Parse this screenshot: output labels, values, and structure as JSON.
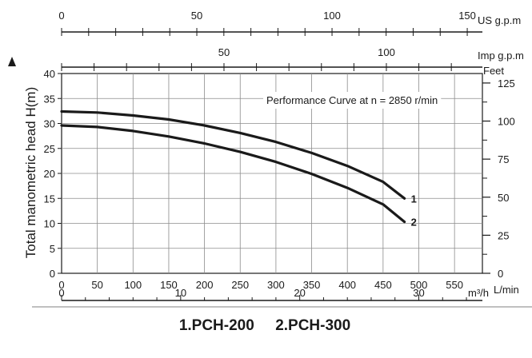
{
  "chart_data": {
    "type": "line",
    "title": "Performance Curve at n = 2850 r/min",
    "ylabel": "Total manometric head H(m)",
    "xlabel": "L/min",
    "xlim": [
      0,
      600
    ],
    "ylim": [
      0,
      40
    ],
    "x_ticks": [
      0,
      50,
      100,
      150,
      200,
      250,
      300,
      350,
      400,
      450,
      500,
      550
    ],
    "y_ticks": [
      0,
      5,
      10,
      15,
      20,
      25,
      30,
      35,
      40
    ],
    "grid": true,
    "series": [
      {
        "name": "1",
        "x": [
          0,
          50,
          100,
          150,
          200,
          250,
          300,
          350,
          400,
          450,
          480
        ],
        "y": [
          32.4,
          32.2,
          31.6,
          30.8,
          29.6,
          28.1,
          26.3,
          24.1,
          21.5,
          18.3,
          15.0
        ]
      },
      {
        "name": "2",
        "x": [
          0,
          50,
          100,
          150,
          200,
          250,
          300,
          350,
          400,
          450,
          480
        ],
        "y": [
          29.6,
          29.3,
          28.5,
          27.4,
          26.0,
          24.3,
          22.3,
          19.9,
          17.1,
          13.8,
          10.3
        ]
      }
    ],
    "secondary_axes": {
      "us_gpm": {
        "unit": "US g.p.m",
        "ticks": [
          0,
          50,
          100,
          150
        ]
      },
      "imp_gpm": {
        "unit": "Imp g.p.m",
        "ticks": [
          50,
          100
        ]
      },
      "feet": {
        "unit": "Feet",
        "ticks": [
          0,
          25,
          50,
          75,
          100,
          125
        ]
      },
      "m3h": {
        "unit": "m³/h",
        "ticks": [
          0,
          10,
          20,
          30
        ]
      }
    },
    "caption": "1.PCH-200     2.PCH-300"
  }
}
